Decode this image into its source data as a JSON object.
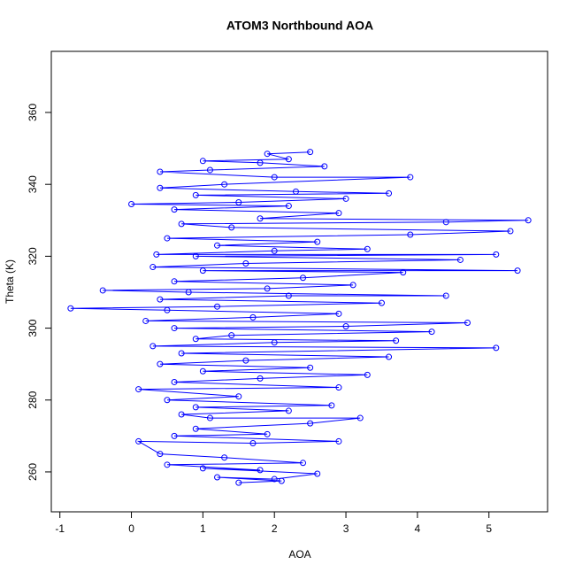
{
  "chart_data": {
    "type": "line",
    "markers": "circle",
    "color": "#0000ff",
    "title": "ATOM3 Northbound AOA",
    "x_label": "AOA",
    "y_label": "Theta (K)",
    "xlim": [
      -1.12,
      5.82
    ],
    "ylim": [
      248.9,
      377
    ],
    "xticks": [
      -1,
      0,
      1,
      2,
      3,
      4,
      5
    ],
    "yticks": [
      260,
      280,
      300,
      320,
      340,
      360
    ],
    "x": [
      1.5,
      2.1,
      1.2,
      2.0,
      2.6,
      1.0,
      1.8,
      0.5,
      2.4,
      1.3,
      0.4,
      0.1,
      1.7,
      2.9,
      0.6,
      1.9,
      0.9,
      2.5,
      3.2,
      1.1,
      0.7,
      2.2,
      0.9,
      2.8,
      0.5,
      1.5,
      0.1,
      2.9,
      0.6,
      1.8,
      3.3,
      1.0,
      2.5,
      0.4,
      1.6,
      3.6,
      0.7,
      5.1,
      0.3,
      2.0,
      3.7,
      0.9,
      1.4,
      4.2,
      0.6,
      3.0,
      4.7,
      0.2,
      1.7,
      2.9,
      0.5,
      -0.85,
      1.2,
      3.5,
      0.4,
      2.2,
      4.4,
      0.8,
      -0.4,
      1.9,
      3.1,
      0.6,
      2.4,
      3.8,
      1.0,
      5.4,
      0.3,
      1.6,
      4.6,
      0.9,
      5.1,
      0.35,
      2.0,
      3.3,
      1.2,
      2.6,
      0.5,
      3.9,
      5.3,
      1.4,
      0.7,
      4.4,
      5.55,
      1.8,
      2.9,
      0.6,
      2.2,
      0.0,
      1.5,
      3.0,
      0.9,
      3.6,
      2.3,
      0.4,
      1.3,
      3.9,
      2.0,
      0.4,
      1.1,
      2.7,
      1.8,
      1.0,
      2.2,
      1.9,
      2.5
    ],
    "values": [
      257,
      257.5,
      258.5,
      258,
      259.5,
      261,
      260.5,
      262,
      262.5,
      264,
      265,
      268.5,
      268,
      268.5,
      270,
      270.5,
      272,
      273.5,
      275,
      275,
      276,
      277,
      278,
      278.5,
      280,
      281,
      283,
      283.5,
      285,
      286,
      287,
      288,
      289,
      290,
      291,
      292,
      293,
      294.5,
      295,
      296,
      296.5,
      297,
      298,
      299,
      300,
      300.5,
      301.5,
      302,
      303,
      304,
      305,
      305.5,
      306,
      307,
      308,
      309,
      309,
      310,
      310.5,
      311,
      312,
      313,
      314,
      315.5,
      316,
      316,
      317,
      318,
      319,
      320,
      320.5,
      320.5,
      321.5,
      322,
      323,
      324,
      325,
      326,
      327,
      328,
      329,
      329.5,
      330,
      330.5,
      332,
      333,
      334,
      334.5,
      335,
      336,
      337,
      337.5,
      338,
      339,
      340,
      342,
      342,
      343.5,
      344,
      345,
      346,
      346.5,
      347,
      348.5,
      349
    ]
  }
}
